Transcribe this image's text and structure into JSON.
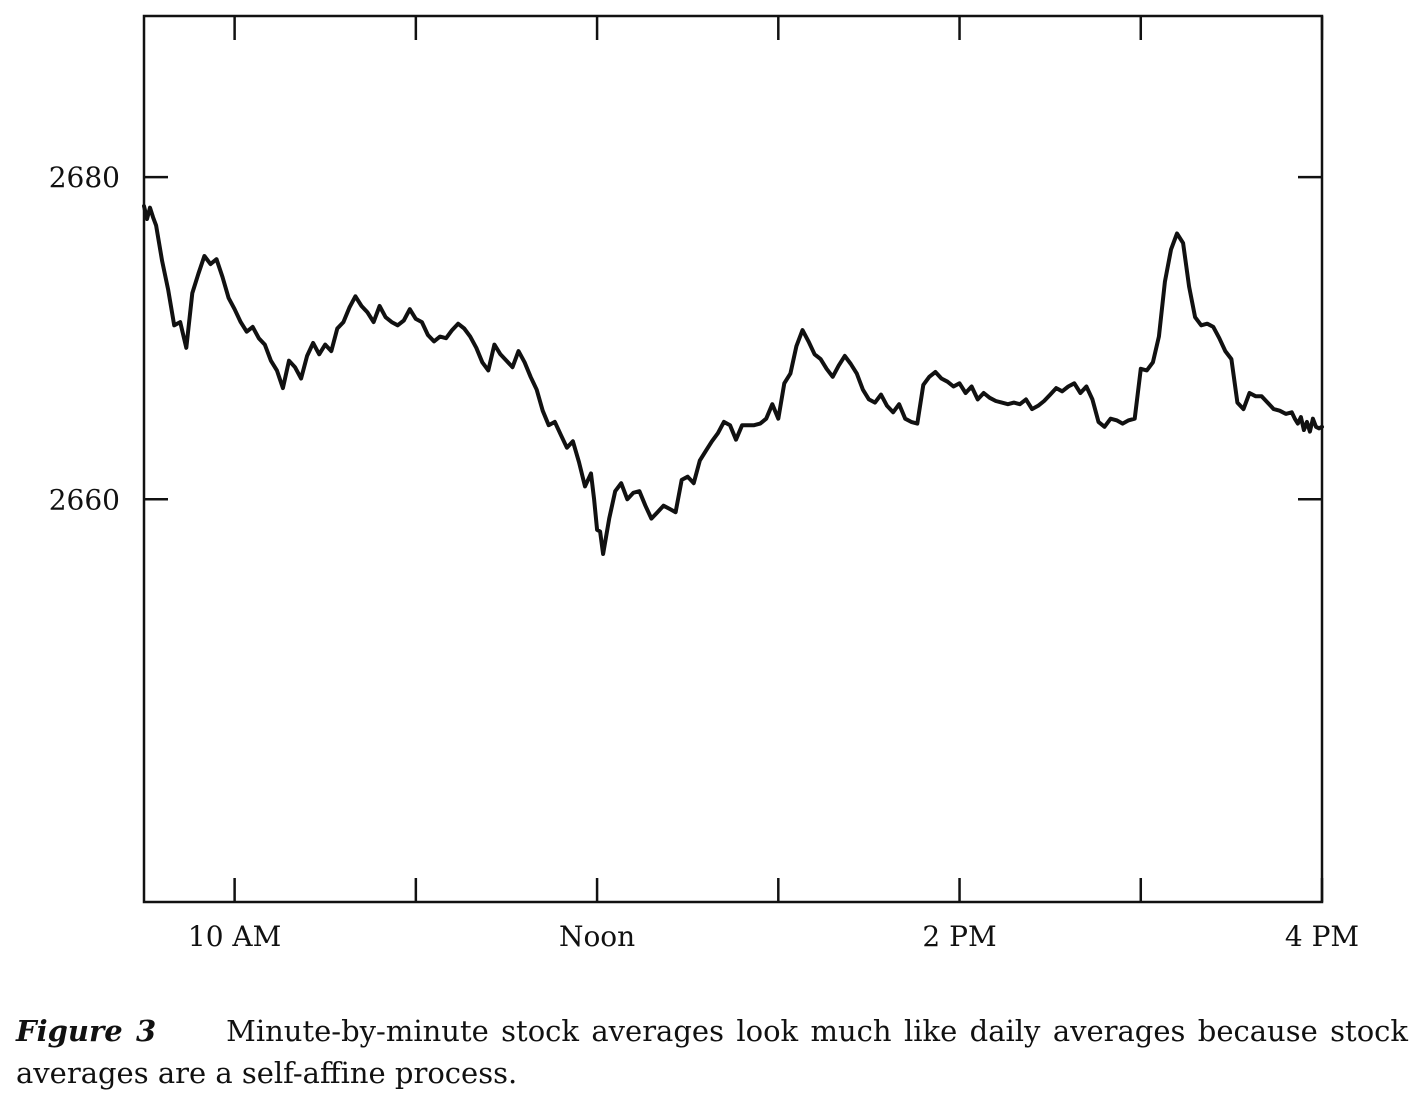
{
  "chart_data": {
    "type": "line",
    "xlabel": "",
    "ylabel": "",
    "x_unit": "minutes after 9:30 AM",
    "xlim": [
      0,
      390
    ],
    "ylim": [
      2635,
      2690
    ],
    "y_ticks": [
      2660,
      2680
    ],
    "y_tick_labels": [
      "2660",
      "2680"
    ],
    "x_ticks": [
      30,
      90,
      150,
      210,
      270,
      330,
      390
    ],
    "x_tick_labels": {
      "30": "10 AM",
      "150": "Noon",
      "270": "2 PM",
      "390": "4 PM"
    },
    "grid": false,
    "legend": "none",
    "line_color": "#111111",
    "series": [
      {
        "x": [
          0,
          1,
          2,
          3,
          4,
          6,
          8,
          10,
          12,
          14,
          16,
          18,
          20,
          22,
          24,
          26,
          28,
          30,
          32,
          34,
          36,
          38,
          40,
          42,
          44,
          46,
          48,
          50,
          52,
          54,
          56,
          58,
          60,
          62,
          64,
          66,
          68,
          70,
          72,
          74,
          76,
          78,
          80,
          82,
          84,
          86,
          88,
          90,
          92,
          94,
          96,
          98,
          100,
          102,
          104,
          106,
          108,
          110,
          112,
          114,
          116,
          118,
          120,
          122,
          124,
          126,
          128,
          130,
          132,
          134,
          136,
          138,
          140,
          142,
          144,
          146,
          148,
          149,
          150,
          151,
          152,
          154,
          156,
          158,
          160,
          162,
          164,
          166,
          168,
          170,
          172,
          174,
          176,
          178,
          180,
          182,
          184,
          186,
          188,
          190,
          192,
          194,
          196,
          198,
          200,
          202,
          204,
          206,
          208,
          210,
          212,
          214,
          216,
          218,
          220,
          222,
          224,
          226,
          228,
          230,
          232,
          234,
          236,
          238,
          240,
          242,
          244,
          246,
          248,
          250,
          252,
          254,
          256,
          258,
          260,
          262,
          264,
          266,
          268,
          270,
          272,
          274,
          276,
          278,
          280,
          282,
          284,
          286,
          288,
          290,
          292,
          294,
          296,
          298,
          300,
          302,
          304,
          306,
          308,
          310,
          312,
          314,
          316,
          318,
          320,
          322,
          324,
          326,
          328,
          330,
          332,
          334,
          336,
          338,
          340,
          342,
          344,
          346,
          348,
          350,
          352,
          354,
          356,
          358,
          360,
          362,
          364,
          366,
          368,
          370,
          372,
          374,
          376,
          378,
          380,
          381,
          382,
          383,
          384,
          385,
          386,
          387,
          388,
          389,
          390
        ],
        "y": [
          2678.2,
          2677.4,
          2678.1,
          2677.5,
          2677.0,
          2674.8,
          2673.0,
          2670.8,
          2671.0,
          2669.4,
          2672.8,
          2674.0,
          2675.1,
          2674.6,
          2674.9,
          2673.8,
          2672.5,
          2671.8,
          2671.0,
          2670.4,
          2670.7,
          2670.0,
          2669.6,
          2668.6,
          2668.0,
          2666.9,
          2668.6,
          2668.2,
          2667.5,
          2668.9,
          2669.7,
          2669.0,
          2669.6,
          2669.2,
          2670.6,
          2671.0,
          2671.9,
          2672.6,
          2672.0,
          2671.6,
          2671.0,
          2672.0,
          2671.3,
          2671.0,
          2670.8,
          2671.1,
          2671.8,
          2671.2,
          2671.0,
          2670.2,
          2669.8,
          2670.1,
          2670.0,
          2670.5,
          2670.9,
          2670.6,
          2670.1,
          2669.4,
          2668.5,
          2668.0,
          2669.6,
          2669.0,
          2668.6,
          2668.2,
          2669.2,
          2668.5,
          2667.6,
          2666.8,
          2665.5,
          2664.6,
          2664.8,
          2664.0,
          2663.2,
          2663.6,
          2662.3,
          2660.8,
          2661.6,
          2660.0,
          2658.1,
          2658.0,
          2656.6,
          2658.8,
          2660.5,
          2661.0,
          2660.0,
          2660.4,
          2660.5,
          2659.6,
          2658.8,
          2659.2,
          2659.6,
          2659.4,
          2659.2,
          2661.2,
          2661.4,
          2661.0,
          2662.4,
          2663.0,
          2663.6,
          2664.1,
          2664.8,
          2664.6,
          2663.7,
          2664.6,
          2664.6,
          2664.6,
          2664.7,
          2665.0,
          2665.9,
          2665.0,
          2667.2,
          2667.8,
          2669.5,
          2670.5,
          2669.8,
          2669.0,
          2668.7,
          2668.1,
          2667.6,
          2668.3,
          2668.9,
          2668.4,
          2667.8,
          2666.8,
          2666.2,
          2666.0,
          2666.5,
          2665.8,
          2665.4,
          2665.9,
          2665.0,
          2664.8,
          2664.7,
          2667.1,
          2667.6,
          2667.9,
          2667.5,
          2667.3,
          2667.0,
          2667.2,
          2666.6,
          2667.0,
          2666.2,
          2666.6,
          2666.3,
          2666.1,
          2666.0,
          2665.9,
          2666.0,
          2665.9,
          2666.2,
          2665.6,
          2665.8,
          2666.1,
          2666.5,
          2666.9,
          2666.7,
          2667.0,
          2667.2,
          2666.6,
          2667.0,
          2666.2,
          2664.8,
          2664.5,
          2665.0,
          2664.9,
          2664.7,
          2664.9,
          2665.0,
          2668.1,
          2668.0,
          2668.5,
          2670.1,
          2673.5,
          2675.5,
          2676.5,
          2675.9,
          2673.2,
          2671.3,
          2670.8,
          2670.9,
          2670.7,
          2670.0,
          2669.2,
          2668.7,
          2666.0,
          2665.6,
          2666.6,
          2666.4,
          2666.4,
          2666.0,
          2665.6,
          2665.5,
          2665.3,
          2665.4,
          2665.0,
          2664.7,
          2665.1,
          2664.3,
          2664.8,
          2664.2,
          2665.0,
          2664.5,
          2664.4,
          2664.5
        ]
      }
    ]
  },
  "caption": {
    "label": "Figure 3",
    "text": "Minute-by-minute stock averages look much like daily averages because stock averages are a self-affine process."
  }
}
